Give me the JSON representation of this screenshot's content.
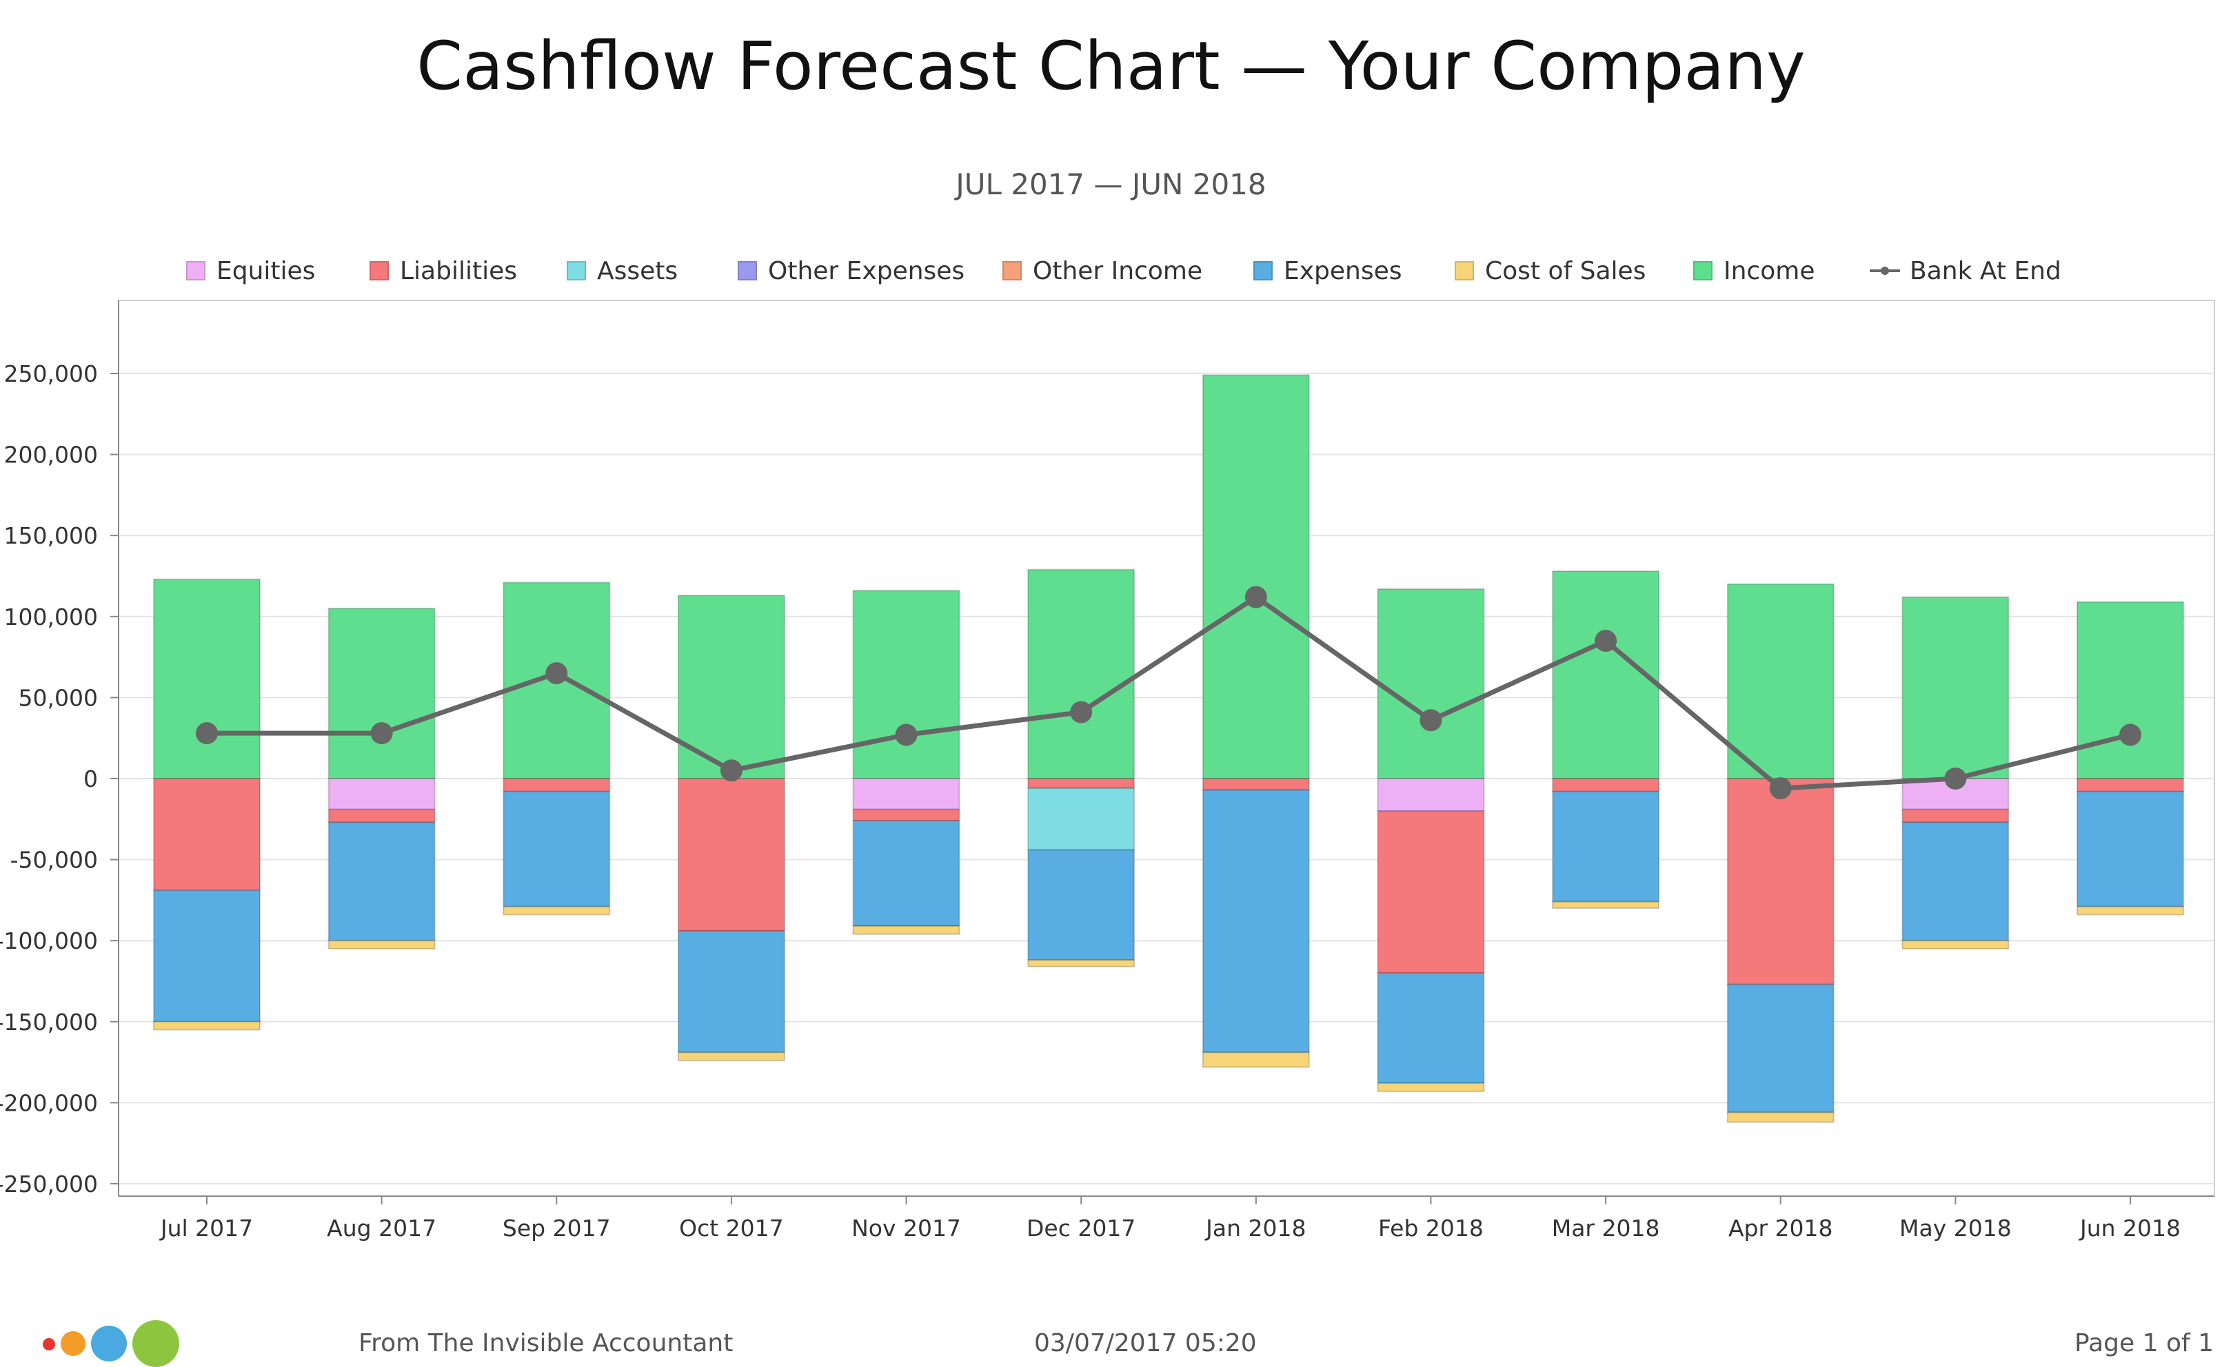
{
  "title": "Cashflow Forecast Chart — Your Company",
  "subtitle": "JUL 2017 — JUN 2018",
  "footer": {
    "source": "From The Invisible Accountant",
    "datetime": "03/07/2017 05:20",
    "page": "Page 1 of 1"
  },
  "logo_colors": [
    "#e8352f",
    "#f39c27",
    "#4aa9e0",
    "#8cc63f"
  ],
  "legend": [
    {
      "name": "Equities",
      "color": "#eeb0f5"
    },
    {
      "name": "Liabilities",
      "color": "#f5787a"
    },
    {
      "name": "Assets",
      "color": "#7ddde2"
    },
    {
      "name": "Other Expenses",
      "color": "#9c98ee"
    },
    {
      "name": "Other Income",
      "color": "#f5a078"
    },
    {
      "name": "Expenses",
      "color": "#58aee2"
    },
    {
      "name": "Cost of Sales",
      "color": "#f8d478"
    },
    {
      "name": "Income",
      "color": "#60de90"
    },
    {
      "name": "Bank At End",
      "color": "#666666",
      "type": "line"
    }
  ],
  "chart_data": {
    "type": "bar",
    "stacked": true,
    "categories": [
      "Jul 2017",
      "Aug 2017",
      "Sep 2017",
      "Oct 2017",
      "Nov 2017",
      "Dec 2017",
      "Jan 2018",
      "Feb 2018",
      "Mar 2018",
      "Apr 2018",
      "May 2018",
      "Jun 2018"
    ],
    "ylim": [
      -250000,
      250000
    ],
    "yticks": [
      250000,
      200000,
      150000,
      100000,
      50000,
      0,
      -50000,
      -100000,
      -150000,
      -200000,
      -250000
    ],
    "ytick_labels": [
      "250,000",
      "200,000",
      "150,000",
      "100,000",
      "50,000",
      "0",
      "-50,000",
      "-100,000",
      "-150,000",
      "-200,000",
      "-250,000"
    ],
    "grid": true,
    "legend_position": "top",
    "series": [
      {
        "name": "Income",
        "color": "#60de90",
        "values": [
          123000,
          105000,
          121000,
          113000,
          116000,
          129000,
          249000,
          117000,
          128000,
          120000,
          112000,
          109000
        ]
      },
      {
        "name": "Equities",
        "color": "#eeb0f5",
        "values": [
          0,
          -19000,
          0,
          0,
          -19000,
          0,
          0,
          -20000,
          0,
          0,
          -19000,
          0
        ]
      },
      {
        "name": "Liabilities",
        "color": "#f5787a",
        "values": [
          -69000,
          -8000,
          -8000,
          -94000,
          -7000,
          -6000,
          -7000,
          -100000,
          -8000,
          -127000,
          -8000,
          -8000
        ]
      },
      {
        "name": "Assets",
        "color": "#7ddde2",
        "values": [
          0,
          0,
          0,
          0,
          0,
          -38000,
          0,
          0,
          0,
          0,
          0,
          0
        ]
      },
      {
        "name": "Other Expenses",
        "color": "#9c98ee",
        "values": [
          0,
          0,
          0,
          0,
          0,
          0,
          0,
          0,
          0,
          0,
          0,
          0
        ]
      },
      {
        "name": "Other Income",
        "color": "#f5a078",
        "values": [
          0,
          0,
          0,
          0,
          0,
          0,
          0,
          0,
          0,
          0,
          0,
          0
        ]
      },
      {
        "name": "Expenses",
        "color": "#58aee2",
        "values": [
          -81000,
          -73000,
          -71000,
          -75000,
          -65000,
          -68000,
          -162000,
          -68000,
          -68000,
          -79000,
          -73000,
          -71000
        ]
      },
      {
        "name": "Cost of Sales",
        "color": "#f8d478",
        "values": [
          -5000,
          -5000,
          -5000,
          -5000,
          -5000,
          -4000,
          -9000,
          -5000,
          -4000,
          -6000,
          -5000,
          -5000
        ]
      },
      {
        "name": "Bank At End",
        "type": "line",
        "color": "#666666",
        "values": [
          28000,
          28000,
          65000,
          5000,
          27000,
          41000,
          112000,
          36000,
          85000,
          -6000,
          0,
          27000
        ]
      }
    ]
  }
}
